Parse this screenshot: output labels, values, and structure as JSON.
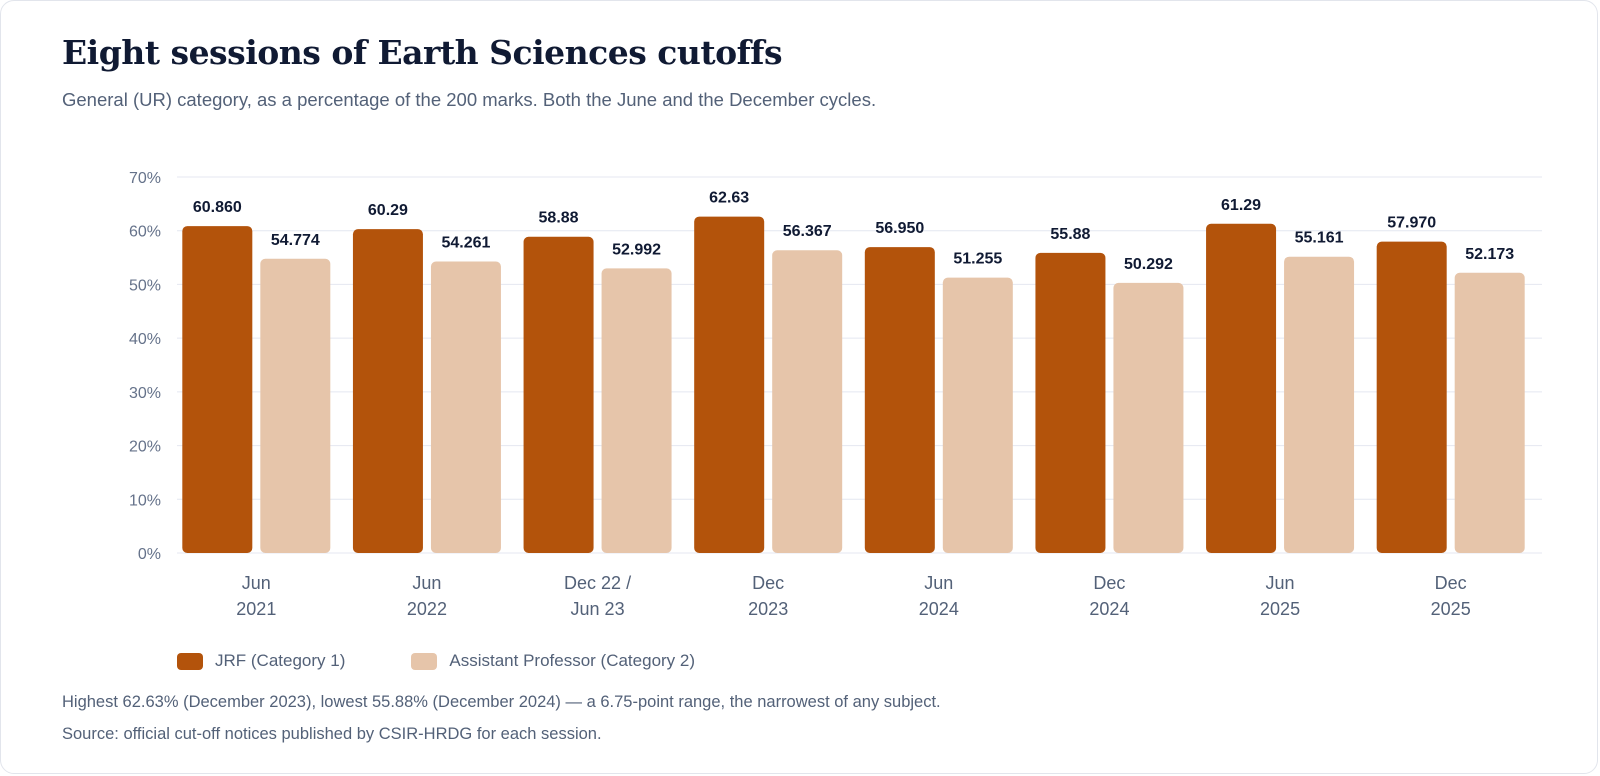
{
  "header": {
    "title": "Eight sessions of Earth Sciences cutoffs",
    "subtitle": "General (UR) category, as a percentage of the 200 marks. Both the June and the December cycles."
  },
  "legend": {
    "series1": "JRF (Category 1)",
    "series2": "Assistant Professor (Category 2)"
  },
  "notes": {
    "summary": "Highest 62.63% (December 2023), lowest 55.88% (December 2024) — a 6.75-point range, the narrowest of any subject.",
    "source": "Source: official cut-off notices published by CSIR-HRDG for each session."
  },
  "colors": {
    "jrf": "#b3530b",
    "ap": "#e6c5aa",
    "grid": "#e4e7f0"
  },
  "chart_data": {
    "type": "bar",
    "categories": [
      [
        "Jun",
        "2021"
      ],
      [
        "Jun",
        "2022"
      ],
      [
        "Dec 22 /",
        "Jun 23"
      ],
      [
        "Dec",
        "2023"
      ],
      [
        "Jun",
        "2024"
      ],
      [
        "Dec",
        "2024"
      ],
      [
        "Jun",
        "2025"
      ],
      [
        "Dec",
        "2025"
      ]
    ],
    "series": [
      {
        "name": "JRF (Category 1)",
        "values": [
          60.86,
          60.29,
          58.88,
          62.63,
          56.95,
          55.88,
          61.29,
          57.97
        ],
        "labels": [
          "60.860",
          "60.29",
          "58.88",
          "62.63",
          "56.950",
          "55.88",
          "61.29",
          "57.970"
        ]
      },
      {
        "name": "Assistant Professor (Category 2)",
        "values": [
          54.774,
          54.261,
          52.992,
          56.367,
          51.255,
          50.292,
          55.161,
          52.173
        ],
        "labels": [
          "54.774",
          "54.261",
          "52.992",
          "56.367",
          "51.255",
          "50.292",
          "55.161",
          "52.173"
        ]
      }
    ],
    "yticks": [
      "0%",
      "10%",
      "20%",
      "30%",
      "40%",
      "50%",
      "60%",
      "70%"
    ],
    "ylim": [
      0,
      70
    ],
    "grid": true,
    "legend_position": "bottom-left"
  }
}
